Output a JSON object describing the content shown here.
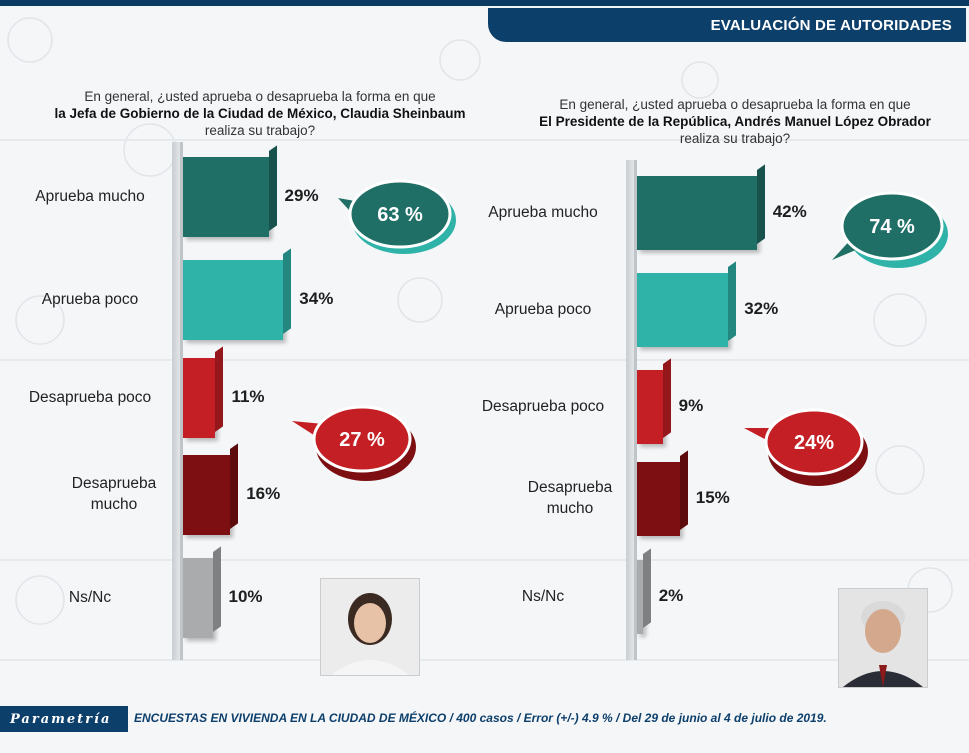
{
  "header": {
    "title": "EVALUACIÓN DE AUTORIDADES"
  },
  "left": {
    "question_line1": "En general, ¿usted aprueba o desaprueba la forma en que",
    "question_line2": "la Jefa de Gobierno de la Ciudad de México, Claudia Sheinbaum",
    "question_line3": "realiza su trabajo?",
    "approve_total": "63 %",
    "disapprove_total": "27 %"
  },
  "right": {
    "question_line1": "En general, ¿usted aprueba o desaprueba la forma en que",
    "question_line2": "El Presidente de la República, Andrés Manuel López Obrador",
    "question_line3": "realiza su trabajo?",
    "approve_total": "74 %",
    "disapprove_total": "24%"
  },
  "chart_data": [
    {
      "type": "bar",
      "orientation": "horizontal",
      "categories": [
        "Aprueba mucho",
        "Aprueba poco",
        "Desaprueba poco",
        "Desaprueba mucho",
        "Ns/Nc"
      ],
      "values": [
        29,
        34,
        11,
        16,
        10
      ],
      "value_labels": [
        "29%",
        "34%",
        "11%",
        "16%",
        "10%"
      ],
      "colors": [
        "#1f6f66",
        "#2fb3a9",
        "#c41f24",
        "#7d0f12",
        "#a9abad"
      ],
      "grid": false,
      "legend": "none"
    },
    {
      "type": "bar",
      "orientation": "horizontal",
      "categories": [
        "Aprueba mucho",
        "Aprueba poco",
        "Desaprueba poco",
        "Desaprueba mucho",
        "Ns/Nc"
      ],
      "values": [
        42,
        32,
        9,
        15,
        2
      ],
      "value_labels": [
        "42%",
        "32%",
        "9%",
        "15%",
        "2%"
      ],
      "colors": [
        "#1f6f66",
        "#2fb3a9",
        "#c41f24",
        "#7d0f12",
        "#a9abad"
      ],
      "grid": false,
      "legend": "none"
    }
  ],
  "footer": {
    "brand": "Parametría",
    "note": "ENCUESTAS EN VIVIENDA EN LA CIUDAD DE MÉXICO / 400 casos / Error (+/-) 4.9 % / Del 29 de junio  al 4 de julio de 2019."
  }
}
